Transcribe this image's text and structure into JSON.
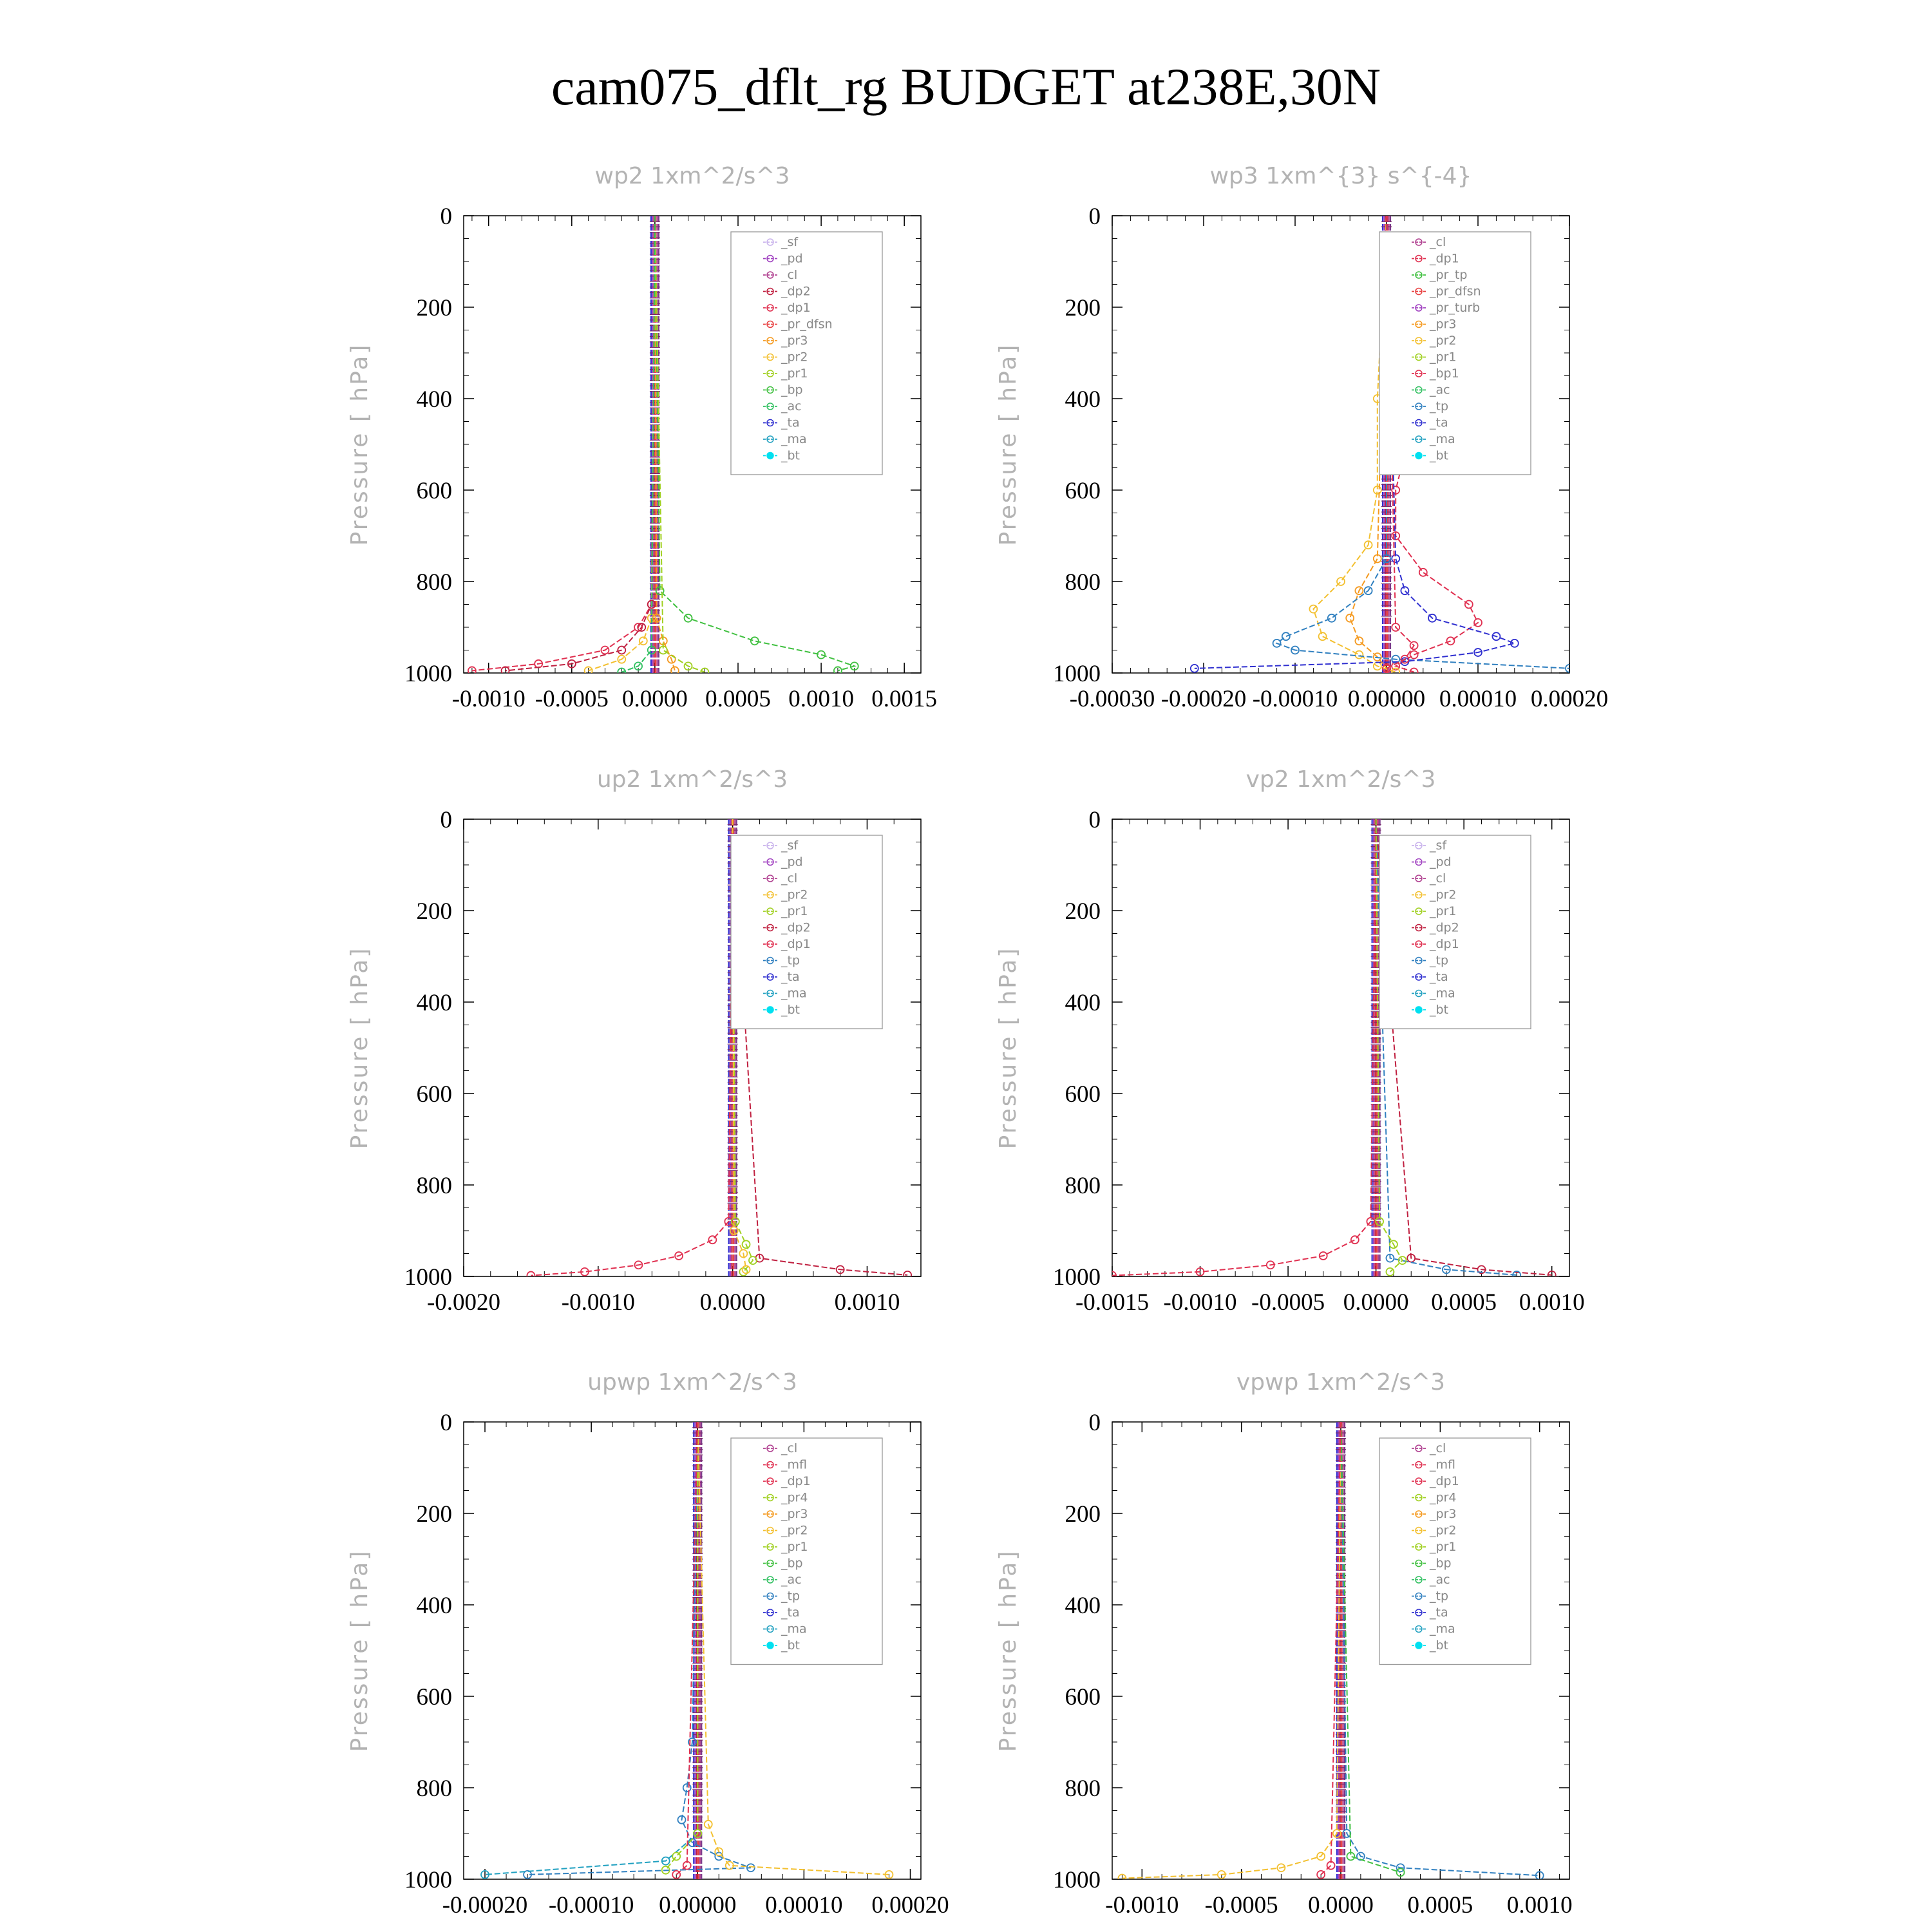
{
  "title": "cam075_dflt_rg  BUDGET at238E,30N",
  "colors": {
    "sf": "#c9b3ec",
    "pd": "#a040c0",
    "cl": "#b04090",
    "dp2": "#c02040",
    "dp1": "#e03050",
    "pr_dfsn": "#e84040",
    "pr3": "#f59a20",
    "pr2": "#f3c030",
    "pr1": "#a0d020",
    "bp": "#40c040",
    "ac": "#30c060",
    "tp": "#3080c0",
    "ta": "#3030d0",
    "ma": "#20a0c0",
    "bt": "#00e0f0"
  },
  "chart_data": [
    {
      "type": "line",
      "title": "wp2   1xm^2/s^3",
      "ylabel": "Pressure [ hPa]",
      "xlim": [
        -0.00115,
        0.0016
      ],
      "ylim": [
        1000,
        0
      ],
      "yticks": [
        0,
        200,
        400,
        600,
        800,
        1000
      ],
      "xticks": [
        -0.001,
        -0.0005,
        0.0,
        0.0005,
        0.001,
        0.0015
      ],
      "xtick_labels": [
        "-0.0010",
        "-0.0005",
        "0.0000",
        "0.0005",
        "0.0010",
        "0.0015"
      ],
      "legend": [
        "_sf",
        "_pd",
        "_cl",
        "_dp2",
        "_dp1",
        "_pr_dfsn",
        "_pr3",
        "_pr2",
        "_pr1",
        "_bp",
        "_ac",
        "_ta",
        "_ma",
        "_bt"
      ],
      "series": [
        {
          "name": "_dp1",
          "p": [
            850,
            900,
            950,
            980,
            995
          ],
          "x": [
            -2e-05,
            -0.0001,
            -0.0003,
            -0.0007,
            -0.0011
          ]
        },
        {
          "name": "_dp2",
          "p": [
            850,
            900,
            950,
            980,
            995
          ],
          "x": [
            -2e-05,
            -8e-05,
            -0.0002,
            -0.0005,
            -0.0009
          ]
        },
        {
          "name": "_pr2",
          "p": [
            880,
            930,
            970,
            995
          ],
          "x": [
            -2e-05,
            -7e-05,
            -0.0002,
            -0.0004
          ]
        },
        {
          "name": "_pr3",
          "p": [
            880,
            930,
            970,
            995
          ],
          "x": [
            1e-05,
            5e-05,
            0.0001,
            0.00012
          ]
        },
        {
          "name": "_bp",
          "p": [
            820,
            880,
            930,
            960,
            985,
            995
          ],
          "x": [
            3e-05,
            0.0002,
            0.0006,
            0.001,
            0.0012,
            0.0011
          ]
        },
        {
          "name": "_pr1",
          "p": [
            950,
            985,
            998
          ],
          "x": [
            5e-05,
            0.0002,
            0.0003
          ]
        },
        {
          "name": "_ac",
          "p": [
            950,
            985,
            998
          ],
          "x": [
            -2e-05,
            -0.0001,
            -0.0002
          ]
        }
      ]
    },
    {
      "type": "line",
      "title": "wp3   1xm^{3} s^{-4}",
      "ylabel": "Pressure [ hPa]",
      "xlim": [
        -0.0003,
        0.0002
      ],
      "ylim": [
        1000,
        0
      ],
      "yticks": [
        0,
        200,
        400,
        600,
        800,
        1000
      ],
      "xticks": [
        -0.0003,
        -0.0002,
        -0.0001,
        0.0,
        0.0001,
        0.0002
      ],
      "xtick_labels": [
        "-0.00030",
        "-0.00020",
        "-0.00010",
        "0.00000",
        "0.00010",
        "0.00020"
      ],
      "legend": [
        "_cl",
        "_dp1",
        "_pr_tp",
        "_pr_dfsn",
        "_pr_turb",
        "_pr3",
        "_pr2",
        "_pr1",
        "_bp1",
        "_ac",
        "_tp",
        "_ta",
        "_ma",
        "_bt"
      ],
      "series": [
        {
          "name": "_bp1",
          "p": [
            350,
            450,
            520,
            600,
            700,
            780,
            850,
            890,
            930,
            960,
            985,
            998
          ],
          "x": [
            1e-05,
            2e-05,
            2e-05,
            1e-05,
            1e-05,
            4e-05,
            9e-05,
            0.0001,
            7e-05,
            3e-05,
            1e-05,
            3e-05
          ]
        },
        {
          "name": "_pr2",
          "p": [
            400,
            600,
            720,
            800,
            860,
            920,
            960,
            985,
            998
          ],
          "x": [
            -1e-05,
            -1e-05,
            -2e-05,
            -5e-05,
            -8e-05,
            -7e-05,
            -3e-05,
            -1e-05,
            1e-05
          ]
        },
        {
          "name": "_pr3",
          "p": [
            750,
            820,
            880,
            930,
            965,
            990
          ],
          "x": [
            -1e-05,
            -3e-05,
            -4e-05,
            -3e-05,
            -1e-05,
            0.0
          ]
        },
        {
          "name": "_tp",
          "p": [
            750,
            820,
            880,
            920,
            935,
            950,
            970,
            990
          ],
          "x": [
            0.0,
            -2e-05,
            -6e-05,
            -0.00011,
            -0.00012,
            -0.0001,
            1e-05,
            0.0002
          ]
        },
        {
          "name": "_ta",
          "p": [
            750,
            820,
            880,
            920,
            935,
            955,
            975,
            990
          ],
          "x": [
            1e-05,
            2e-05,
            5e-05,
            0.00012,
            0.00014,
            0.0001,
            2e-05,
            -0.00021
          ]
        },
        {
          "name": "_dp1",
          "p": [
            900,
            940,
            970,
            990
          ],
          "x": [
            1e-05,
            3e-05,
            2e-05,
            0.0
          ]
        }
      ]
    },
    {
      "type": "line",
      "title": "up2   1xm^2/s^3",
      "ylabel": "Pressure [ hPa]",
      "xlim": [
        -0.002,
        0.0014
      ],
      "ylim": [
        1000,
        0
      ],
      "yticks": [
        0,
        200,
        400,
        600,
        800,
        1000
      ],
      "xticks": [
        -0.002,
        -0.001,
        0.0,
        0.001
      ],
      "xtick_labels": [
        "-0.0020",
        "-0.0010",
        "0.0000",
        "0.0010"
      ],
      "legend": [
        "_sf",
        "_pd",
        "_cl",
        "_pr2",
        "_pr1",
        "_dp2",
        "_dp1",
        "_tp",
        "_ta",
        "_ma",
        "_bt"
      ],
      "series": [
        {
          "name": "_dp1",
          "p": [
            880,
            920,
            955,
            975,
            990,
            998
          ],
          "x": [
            -3e-05,
            -0.00015,
            -0.0004,
            -0.0007,
            -0.0011,
            -0.0015
          ]
        },
        {
          "name": "_dp2",
          "p": [
            960,
            985,
            997
          ],
          "x": [
            0.0002,
            0.0008,
            0.0013
          ]
        },
        {
          "name": "_pr1",
          "p": [
            880,
            930,
            965,
            990
          ],
          "x": [
            2e-05,
            0.0001,
            0.00015,
            8e-05
          ]
        },
        {
          "name": "_pr2",
          "p": [
            900,
            950,
            985
          ],
          "x": [
            1e-05,
            8e-05,
            0.0001
          ]
        }
      ]
    },
    {
      "type": "line",
      "title": "vp2   1xm^2/s^3",
      "ylabel": "Pressure [ hPa]",
      "xlim": [
        -0.0015,
        0.0011
      ],
      "ylim": [
        1000,
        0
      ],
      "yticks": [
        0,
        200,
        400,
        600,
        800,
        1000
      ],
      "xticks": [
        -0.0015,
        -0.001,
        -0.0005,
        0.0,
        0.0005,
        0.001
      ],
      "xtick_labels": [
        "-0.0015",
        "-0.0010",
        "-0.0005",
        "0.0000",
        "0.0005",
        "0.0010"
      ],
      "legend": [
        "_sf",
        "_pd",
        "_cl",
        "_pr2",
        "_pr1",
        "_dp2",
        "_dp1",
        "_tp",
        "_ta",
        "_ma",
        "_bt"
      ],
      "series": [
        {
          "name": "_dp1",
          "p": [
            880,
            920,
            955,
            975,
            990,
            998
          ],
          "x": [
            -3e-05,
            -0.00012,
            -0.0003,
            -0.0006,
            -0.001,
            -0.0015
          ]
        },
        {
          "name": "_dp2",
          "p": [
            960,
            985,
            997
          ],
          "x": [
            0.0002,
            0.0006,
            0.001
          ]
        },
        {
          "name": "_tp",
          "p": [
            960,
            985,
            997
          ],
          "x": [
            8e-05,
            0.0004,
            0.0008
          ]
        },
        {
          "name": "_pr1",
          "p": [
            880,
            930,
            965,
            990
          ],
          "x": [
            2e-05,
            0.0001,
            0.00015,
            8e-05
          ]
        }
      ]
    },
    {
      "type": "line",
      "title": "upwp   1xm^2/s^3",
      "ylabel": "Pressure [ hPa]",
      "xlim": [
        -0.00022,
        0.00021
      ],
      "ylim": [
        1000,
        0
      ],
      "yticks": [
        0,
        200,
        400,
        600,
        800,
        1000
      ],
      "xticks": [
        -0.0002,
        -0.0001,
        0.0,
        0.0001,
        0.0002
      ],
      "xtick_labels": [
        "-0.00020",
        "-0.00010",
        "0.00000",
        "0.00010",
        "0.00020"
      ],
      "legend": [
        "_cl",
        "_mfl",
        "_dp1",
        "_pr4",
        "_pr3",
        "_pr2",
        "_pr1",
        "_bp",
        "_ac",
        "_tp",
        "_ta",
        "_ma",
        "_bt"
      ],
      "series": [
        {
          "name": "_tp",
          "p": [
            700,
            800,
            870,
            920,
            950,
            975,
            990
          ],
          "x": [
            -5e-06,
            -1e-05,
            -1.5e-05,
            -5e-06,
            2e-05,
            5e-05,
            -0.00016
          ]
        },
        {
          "name": "_ma",
          "p": [
            900,
            960,
            990
          ],
          "x": [
            0.0,
            -3e-05,
            -0.0002
          ]
        },
        {
          "name": "_pr2",
          "p": [
            880,
            940,
            970,
            990
          ],
          "x": [
            1e-05,
            2e-05,
            3e-05,
            0.00018
          ]
        },
        {
          "name": "_pr1",
          "p": [
            900,
            950,
            980
          ],
          "x": [
            0.0,
            -2e-05,
            -3e-05
          ]
        },
        {
          "name": "_dp1",
          "p": [
            970,
            990
          ],
          "x": [
            -1e-05,
            -2e-05
          ]
        }
      ]
    },
    {
      "type": "line",
      "title": "vpwp   1xm^2/s^3",
      "ylabel": "Pressure [ hPa]",
      "xlim": [
        -0.00115,
        0.00115
      ],
      "ylim": [
        1000,
        0
      ],
      "yticks": [
        0,
        200,
        400,
        600,
        800,
        1000
      ],
      "xticks": [
        -0.001,
        -0.0005,
        0.0,
        0.0005,
        0.001
      ],
      "xtick_labels": [
        "-0.0010",
        "-0.0005",
        "0.0000",
        "0.0005",
        "0.0010"
      ],
      "legend": [
        "_cl",
        "_mfl",
        "_dp1",
        "_pr4",
        "_pr3",
        "_pr2",
        "_pr1",
        "_bp",
        "_ac",
        "_tp",
        "_ta",
        "_ma",
        "_bt"
      ],
      "series": [
        {
          "name": "_pr2",
          "p": [
            900,
            950,
            975,
            990,
            998
          ],
          "x": [
            -2e-05,
            -0.0001,
            -0.0003,
            -0.0006,
            -0.0011
          ]
        },
        {
          "name": "_tp",
          "p": [
            900,
            950,
            975,
            992
          ],
          "x": [
            3e-05,
            0.0001,
            0.0003,
            0.001
          ]
        },
        {
          "name": "_bp",
          "p": [
            950,
            985
          ],
          "x": [
            5e-05,
            0.0003
          ]
        },
        {
          "name": "_dp1",
          "p": [
            970,
            990
          ],
          "x": [
            -5e-05,
            -0.0001
          ]
        }
      ]
    }
  ]
}
